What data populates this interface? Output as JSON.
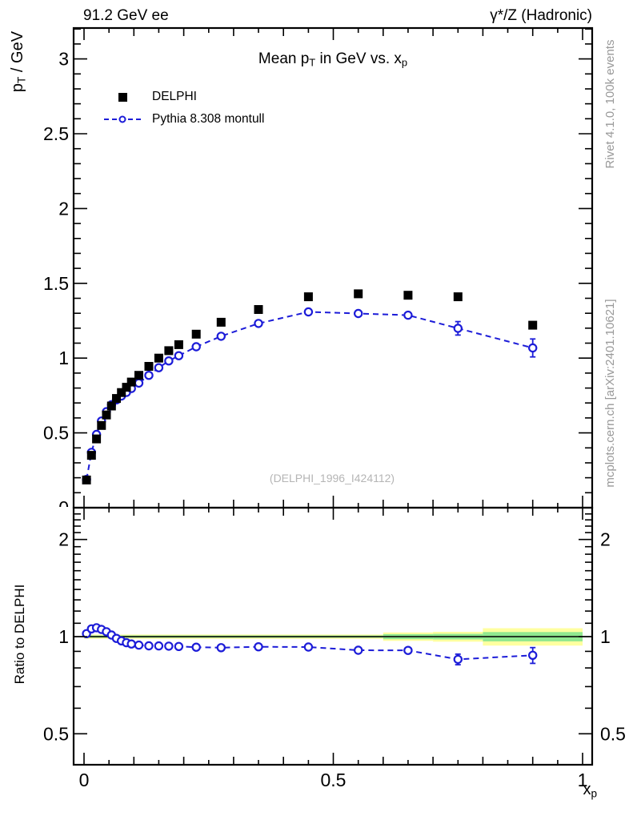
{
  "header": {
    "left": "91.2 GeV ee",
    "right": "γ*/Z (Hadronic)"
  },
  "title": {
    "pre": "Mean p",
    "sub1": "T",
    "mid": " in GeV vs. x",
    "sub2": "p"
  },
  "legend": [
    {
      "label": "DELPHI",
      "marker": "black-filled-square"
    },
    {
      "label": "Pythia 8.308 montull",
      "marker": "blue-dashed-open-circle"
    }
  ],
  "y_axis_label": {
    "pre": "p",
    "sub": "T",
    "post": " / GeV"
  },
  "ratio_axis_label": "Ratio to DELPHI",
  "x_axis_label": {
    "pre": "x",
    "sub": "p"
  },
  "watermark": "(DELPHI_1996_I424112)",
  "side_text_top": "Rivet 4.1.0,  100k events",
  "side_text_bottom": "mcplots.cern.ch [arXiv:2401.10621]",
  "colors": {
    "mc_blue": "#1c1cd8",
    "data_black": "#000000",
    "band_yellow": "#ffffa0",
    "band_green": "#90e890",
    "gray_text": "#999999",
    "watermark_gray": "#b5b5b5",
    "frame": "#000000"
  },
  "chart_data": {
    "type": "scatter-line-with-ratio",
    "title": "Mean pT in GeV vs. xp",
    "xlabel": "xp",
    "top_ylabel": "pT / GeV",
    "ratio_ylabel": "Ratio to DELPHI",
    "x": [
      0.005,
      0.015,
      0.025,
      0.035,
      0.045,
      0.055,
      0.065,
      0.075,
      0.085,
      0.095,
      0.11,
      0.13,
      0.15,
      0.17,
      0.19,
      0.225,
      0.275,
      0.35,
      0.45,
      0.55,
      0.65,
      0.75,
      0.9
    ],
    "series": [
      {
        "name": "DELPHI",
        "values": [
          0.185,
          0.35,
          0.46,
          0.55,
          0.62,
          0.68,
          0.73,
          0.77,
          0.805,
          0.84,
          0.885,
          0.945,
          1.0,
          1.05,
          1.09,
          1.16,
          1.24,
          1.325,
          1.41,
          1.43,
          1.42,
          1.41,
          1.22
        ]
      },
      {
        "name": "Pythia 8.308 montull",
        "values": [
          0.189,
          0.37,
          0.49,
          0.579,
          0.642,
          0.688,
          0.721,
          0.747,
          0.771,
          0.797,
          0.833,
          0.885,
          0.936,
          0.981,
          1.016,
          1.076,
          1.146,
          1.232,
          1.309,
          1.298,
          1.287,
          1.199,
          1.068
        ],
        "errors": [
          0.004,
          0.004,
          0.004,
          0.004,
          0.004,
          0.004,
          0.004,
          0.005,
          0.005,
          0.005,
          0.005,
          0.006,
          0.006,
          0.007,
          0.008,
          0.008,
          0.01,
          0.012,
          0.016,
          0.018,
          0.022,
          0.045,
          0.06
        ]
      }
    ],
    "ratio_note": "ratio = Pythia / DELPHI, drawn in lower log-scale panel",
    "top_ylim": [
      0,
      3.2
    ],
    "xlim": [
      0,
      1
    ],
    "ratio_ylim_log": [
      0.4,
      2.5
    ],
    "grid": false,
    "legend_position": "top-left-inside",
    "bands": {
      "edges": [
        0,
        0.6,
        0.7,
        0.8,
        1.0
      ],
      "yellow_halfwidth": [
        0.015,
        0.03,
        0.035,
        0.062
      ],
      "green_halfwidth": [
        0.008,
        0.018,
        0.02,
        0.033
      ]
    },
    "axes": {
      "x_labeled_ticks": [
        {
          "v": 0,
          "t": "0"
        },
        {
          "v": 0.5,
          "t": "0.5"
        },
        {
          "v": 1,
          "t": "1"
        }
      ],
      "top_y_labeled_ticks": [
        {
          "v": 0,
          "t": "0"
        },
        {
          "v": 0.5,
          "t": "0.5"
        },
        {
          "v": 1,
          "t": "1"
        },
        {
          "v": 1.5,
          "t": "1.5"
        },
        {
          "v": 2,
          "t": "2"
        },
        {
          "v": 2.5,
          "t": "2.5"
        },
        {
          "v": 3,
          "t": "3"
        }
      ],
      "ratio_labeled_ticks": [
        {
          "v": 0.5,
          "t": "0.5"
        },
        {
          "v": 1,
          "t": "1"
        },
        {
          "v": 2,
          "t": "2"
        }
      ]
    }
  }
}
